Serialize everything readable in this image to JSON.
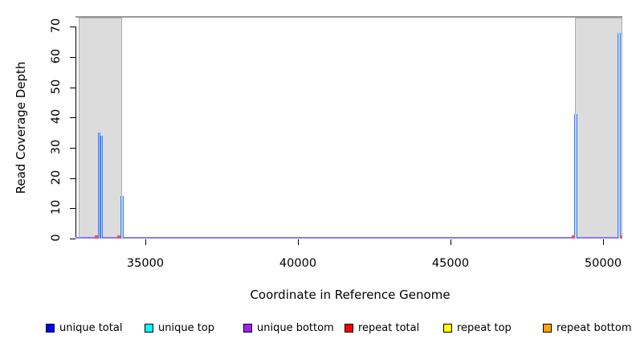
{
  "figure": {
    "xlabel": "Coordinate in Reference Genome",
    "ylabel": "Read Coverage Depth"
  },
  "chart_data": {
    "type": "area",
    "title": "",
    "xlabel": "Coordinate in Reference Genome",
    "ylabel": "Read Coverage Depth",
    "xlim": [
      32700,
      50630
    ],
    "ylim": [
      0,
      73
    ],
    "x_ticks": [
      35000,
      40000,
      45000,
      50000
    ],
    "y_ticks": [
      0,
      10,
      20,
      30,
      40,
      50,
      60,
      70
    ],
    "grid": false,
    "legend_position": "bottom",
    "shaded_regions": [
      {
        "from": 32800,
        "to": 34240
      },
      {
        "from": 49080,
        "to": 50630
      }
    ],
    "series": [
      {
        "name": "unique total",
        "color": "#0000FF",
        "baseline_depth": 0,
        "segments": [
          {
            "from": 33440,
            "to": 33520,
            "depth": 35
          },
          {
            "from": 33520,
            "to": 33580,
            "depth": 34
          },
          {
            "from": 34180,
            "to": 34280,
            "depth": 14
          },
          {
            "from": 49060,
            "to": 49160,
            "depth": 41
          },
          {
            "from": 50460,
            "to": 50560,
            "depth": 68
          }
        ]
      },
      {
        "name": "unique top",
        "color": "#00FFFF",
        "baseline_depth": 0,
        "segments": []
      },
      {
        "name": "unique bottom",
        "color": "#A020F0",
        "baseline_depth": 0,
        "segments": []
      },
      {
        "name": "repeat total",
        "color": "#FF0000",
        "baseline_depth": 0,
        "segments": [
          {
            "from": 33340,
            "to": 33440,
            "depth": 1
          },
          {
            "from": 34080,
            "to": 34180,
            "depth": 1
          },
          {
            "from": 48960,
            "to": 49060,
            "depth": 1
          },
          {
            "from": 50560,
            "to": 50630,
            "depth": 1
          }
        ]
      },
      {
        "name": "repeat top",
        "color": "#FFFF00",
        "baseline_depth": 0,
        "segments": []
      },
      {
        "name": "repeat bottom",
        "color": "#FFA500",
        "baseline_depth": 0,
        "segments": []
      }
    ],
    "legend": [
      {
        "label": "unique total",
        "color": "#0000FF"
      },
      {
        "label": "unique top",
        "color": "#00FFFF"
      },
      {
        "label": "unique bottom",
        "color": "#A020F0"
      },
      {
        "label": "repeat total",
        "color": "#FF0000"
      },
      {
        "label": "repeat top",
        "color": "#FFFF00"
      },
      {
        "label": "repeat bottom",
        "color": "#FFA500"
      }
    ],
    "colors": {
      "shaded_region_fill": "#DCDCDC",
      "shaded_region_border": "#ACACAC",
      "genome_line": "#999999",
      "spike_edge": "#3F7CF0",
      "spike_center": "#B9D6FF",
      "baseline_blend": "#8B7AF0",
      "repeat_mark": "#F05060"
    }
  }
}
